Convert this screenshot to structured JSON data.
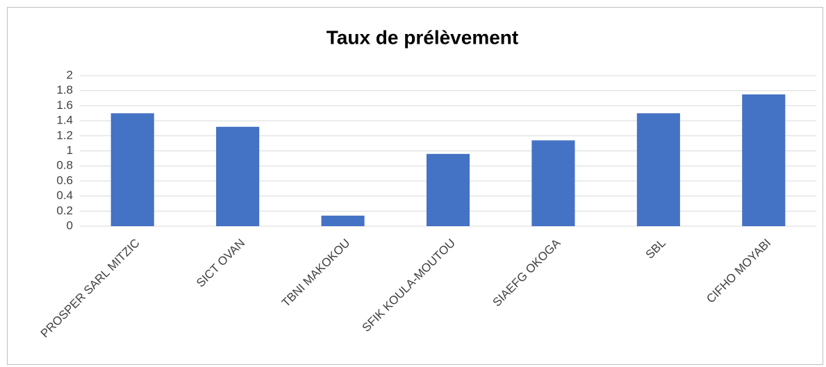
{
  "chart_data": {
    "type": "bar",
    "title": "Taux de prélèvement",
    "categories": [
      "PROSPER SARL MITZIC",
      "SICT OVAN",
      "TBNI MAKOKOU",
      "SFIK KOULA-MOUTOU",
      "SIAEFG OKOGA",
      "SBL",
      "CIFHO MOYABI"
    ],
    "values": [
      1.5,
      1.32,
      0.14,
      0.96,
      1.14,
      1.5,
      1.75
    ],
    "color": "#4472c4",
    "ylim": [
      0,
      2
    ],
    "yticks": [
      0,
      0.2,
      0.4,
      0.6,
      0.8,
      1,
      1.2,
      1.4,
      1.6,
      1.8,
      2
    ],
    "grid": true
  }
}
